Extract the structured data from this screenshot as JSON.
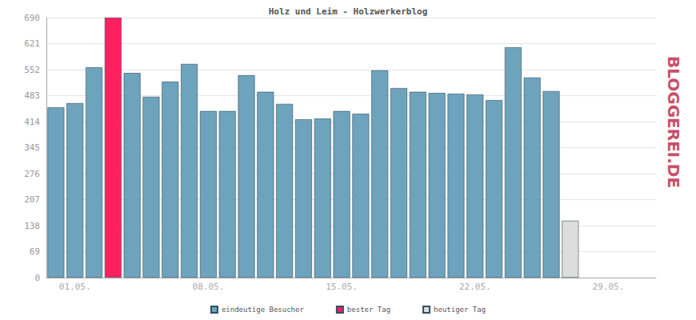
{
  "chart_data": {
    "type": "bar",
    "title": "Holz und Leim - Holzwerkerblog",
    "categories": [
      null,
      "01.05.",
      null,
      null,
      null,
      null,
      null,
      null,
      "08.05.",
      null,
      null,
      null,
      null,
      null,
      null,
      "15.05.",
      null,
      null,
      null,
      null,
      null,
      null,
      "22.05.",
      null,
      null,
      null,
      null,
      null,
      null,
      "29.05.",
      null,
      null
    ],
    "series": [
      {
        "name": "eindeutige Besucher",
        "color": "#6ea3bd",
        "values": [
          452,
          463,
          558,
          null,
          543,
          480,
          520,
          567,
          442,
          442,
          537,
          493,
          461,
          420,
          422,
          442,
          435,
          550,
          503,
          493,
          490,
          488,
          486,
          471,
          611,
          531,
          495,
          null,
          null,
          null,
          null,
          null
        ]
      },
      {
        "name": "bester Tag",
        "color": "#ff2060",
        "values": [
          null,
          null,
          null,
          690,
          null,
          null,
          null,
          null,
          null,
          null,
          null,
          null,
          null,
          null,
          null,
          null,
          null,
          null,
          null,
          null,
          null,
          null,
          null,
          null,
          null,
          null,
          null,
          null,
          null,
          null,
          null,
          null
        ]
      },
      {
        "name": "heutiger Tag",
        "color": "#dddddd",
        "values": [
          null,
          null,
          null,
          null,
          null,
          null,
          null,
          null,
          null,
          null,
          null,
          null,
          null,
          null,
          null,
          null,
          null,
          null,
          null,
          null,
          null,
          null,
          null,
          null,
          null,
          null,
          null,
          151,
          null,
          null,
          null,
          null
        ]
      }
    ],
    "ylim": [
      0,
      690
    ],
    "yticks": [
      0,
      69,
      138,
      207,
      276,
      345,
      414,
      483,
      552,
      621,
      690
    ],
    "grid": true,
    "legend": "bottom",
    "annotations": [
      "BLOGGEREI.DE"
    ]
  }
}
